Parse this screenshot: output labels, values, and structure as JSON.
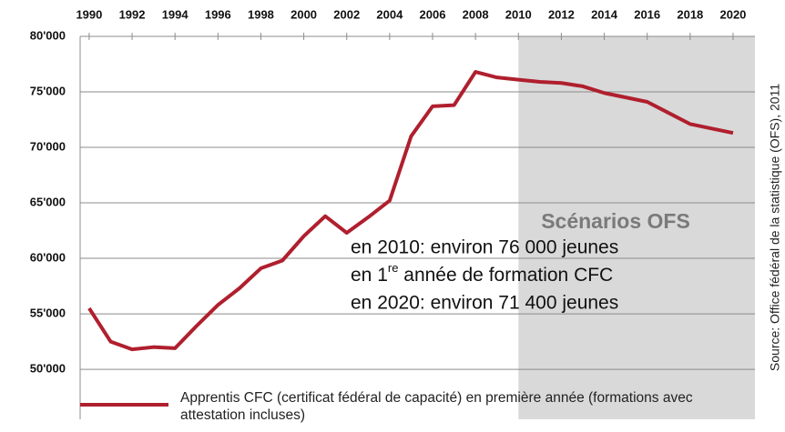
{
  "chart_data": {
    "type": "line",
    "x": [
      1990,
      1991,
      1992,
      1993,
      1994,
      1995,
      1996,
      1997,
      1998,
      1999,
      2000,
      2001,
      2002,
      2003,
      2004,
      2005,
      2006,
      2007,
      2008,
      2009,
      2010,
      2011,
      2012,
      2013,
      2014,
      2015,
      2016,
      2017,
      2018,
      2019,
      2020
    ],
    "series": [
      {
        "name": "Apprentis CFC (certificat fédéral de capacité) en première année (formations avec attestation incluses)",
        "color": "#b01f2e",
        "values": [
          55500,
          52500,
          51800,
          52000,
          51900,
          53900,
          55800,
          57300,
          59100,
          59800,
          62000,
          63800,
          62300,
          63700,
          65200,
          71000,
          73700,
          73800,
          76800,
          76300,
          76100,
          75900,
          75800,
          75500,
          74900,
          74500,
          74100,
          73100,
          72100,
          71700,
          71300
        ]
      }
    ],
    "xlim": [
      1989.58,
      2021.02
    ],
    "xticks": [
      1990,
      1992,
      1994,
      1996,
      1998,
      2000,
      2002,
      2004,
      2006,
      2008,
      2010,
      2012,
      2014,
      2016,
      2018,
      2020
    ],
    "ylim": [
      45500,
      80000
    ],
    "yticks": [
      {
        "value": 50000,
        "label": "50'000"
      },
      {
        "value": 55000,
        "label": "55'000"
      },
      {
        "value": 60000,
        "label": "60'000"
      },
      {
        "value": 65000,
        "label": "65'000"
      },
      {
        "value": 70000,
        "label": "70'000"
      },
      {
        "value": 75000,
        "label": "75'000"
      },
      {
        "value": 80000,
        "label": "80'000"
      }
    ],
    "grid": true,
    "shaded_xrange": [
      2010,
      2021.02
    ],
    "shade_label": "Scénarios OFS",
    "annotation": {
      "line1": "en 2010: environ 76 000 jeunes",
      "line2_start": "en 1",
      "line2_sup": "re",
      "line2_end": " année de formation CFC",
      "line3": "en 2020: environ 71 400 jeunes"
    },
    "source": "Source: Office fédéral de la statistique (OFS), 2011"
  }
}
